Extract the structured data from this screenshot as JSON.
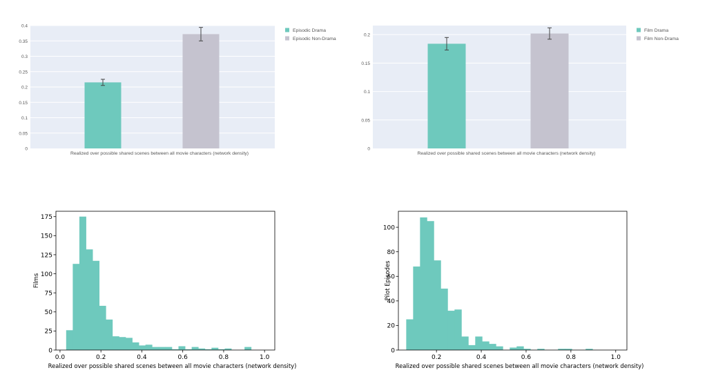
{
  "colors": {
    "teal": "#6ec9bd",
    "gray": "#c5c3cf",
    "plot_bg": "#e8edf6",
    "grid": "#ffffff",
    "errorbar": "#444444"
  },
  "chart_data": [
    {
      "type": "bar",
      "categories": [
        "Episodic Drama",
        "Episodic Non-Drama"
      ],
      "values": [
        0.215,
        0.372
      ],
      "errors": [
        0.01,
        0.022
      ],
      "series_colors": [
        "teal",
        "gray"
      ],
      "xlabel": "Realized over possible shared scenes between all movie characters (network density)",
      "ylim": [
        0,
        0.4
      ],
      "yticks": [
        0,
        0.05,
        0.1,
        0.15,
        0.2,
        0.25,
        0.3,
        0.35,
        0.4
      ],
      "yticklabels": [
        "0",
        "0.05",
        "0.1",
        "0.15",
        "0.2",
        "0.25",
        "0.3",
        "0.35",
        "0.4"
      ],
      "legend": [
        "Episodic Drama",
        "Episodic Non-Drama"
      ],
      "legend_position": "right",
      "grid": true
    },
    {
      "type": "bar",
      "categories": [
        "Film Drama",
        "Film Non-Drama"
      ],
      "values": [
        0.184,
        0.202
      ],
      "errors": [
        0.011,
        0.01
      ],
      "series_colors": [
        "teal",
        "gray"
      ],
      "xlabel": "Realized over possible shared scenes between all movie characters (network density)",
      "ylim": [
        0,
        0.216
      ],
      "yticks": [
        0,
        0.05,
        0.1,
        0.15,
        0.2
      ],
      "yticklabels": [
        "0",
        "0.05",
        "0.1",
        "0.15",
        "0.2"
      ],
      "legend": [
        "Film Drama",
        "Film Non-Drama"
      ],
      "legend_position": "right",
      "grid": true
    },
    {
      "type": "histogram",
      "bin_start": 0.03,
      "bin_width": 0.0323,
      "counts": [
        26,
        113,
        175,
        132,
        117,
        58,
        40,
        18,
        17,
        16,
        10,
        6,
        7,
        4,
        4,
        4,
        1,
        5,
        1,
        4,
        2,
        1,
        3,
        1,
        2,
        0,
        0,
        4
      ],
      "xlim": [
        -0.02,
        1.05
      ],
      "ylim": [
        0,
        182
      ],
      "xticks": [
        0.0,
        0.2,
        0.4,
        0.6,
        0.8,
        1.0
      ],
      "xticklabels": [
        "0.0",
        "0.2",
        "0.4",
        "0.6",
        "0.8",
        "1.0"
      ],
      "yticks": [
        0,
        25,
        50,
        75,
        100,
        125,
        150,
        175
      ],
      "yticklabels": [
        "0",
        "25",
        "50",
        "75",
        "100",
        "125",
        "150",
        "175"
      ],
      "xlabel": "Realized over possible shared scenes between all movie characters (network density)",
      "ylabel": "Films",
      "color": "teal"
    },
    {
      "type": "histogram",
      "bin_start": 0.065,
      "bin_width": 0.0308,
      "counts": [
        25,
        68,
        108,
        105,
        73,
        50,
        32,
        33,
        11,
        4,
        11,
        7,
        5,
        3,
        0,
        2,
        3,
        1,
        0,
        1,
        0,
        0,
        1,
        1,
        0,
        0,
        1
      ],
      "xlim": [
        0.03,
        1.05
      ],
      "ylim": [
        0,
        113
      ],
      "xticks": [
        0.2,
        0.4,
        0.6,
        0.8,
        1.0
      ],
      "xticklabels": [
        "0.2",
        "0.4",
        "0.6",
        "0.8",
        "1.0"
      ],
      "yticks": [
        0,
        20,
        40,
        60,
        80,
        100
      ],
      "yticklabels": [
        "0",
        "20",
        "40",
        "60",
        "80",
        "100"
      ],
      "xlabel": "Realized over possible shared scenes between all movie characters (network density)",
      "ylabel": "Pilot Episodes",
      "color": "teal"
    }
  ]
}
